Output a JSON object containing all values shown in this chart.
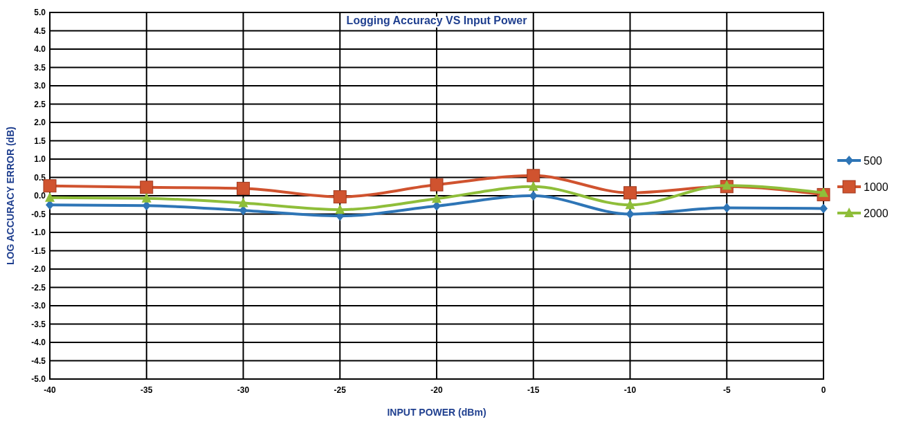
{
  "chart_data": {
    "type": "line",
    "title": "Logging Accuracy VS Input Power",
    "xlabel": "INPUT POWER (dBm)",
    "ylabel": "LOG ACCURACY ERROR (dB)",
    "x": [
      -40,
      -35,
      -30,
      -25,
      -20,
      -15,
      -10,
      -5,
      0
    ],
    "series": [
      {
        "name": "500",
        "color": "#2e75b6",
        "marker": "diamond",
        "values": [
          -0.25,
          -0.27,
          -0.4,
          -0.55,
          -0.28,
          0.0,
          -0.5,
          -0.33,
          -0.35
        ]
      },
      {
        "name": "1000",
        "color": "#d0532f",
        "marker": "square",
        "values": [
          0.27,
          0.23,
          0.2,
          -0.03,
          0.3,
          0.55,
          0.08,
          0.25,
          0.03
        ]
      },
      {
        "name": "2000",
        "color": "#8fbe3a",
        "marker": "triangle",
        "values": [
          -0.05,
          -0.07,
          -0.2,
          -0.38,
          -0.08,
          0.25,
          -0.25,
          0.28,
          0.08
        ]
      }
    ],
    "xlim": [
      -40,
      0
    ],
    "xticks": [
      -40,
      -35,
      -30,
      -25,
      -20,
      -15,
      -10,
      -5,
      0
    ],
    "ylim": [
      -5,
      5
    ],
    "yticks": [
      {
        "value": -5,
        "label": "-5.0"
      },
      {
        "value": -4.5,
        "label": "-4.5"
      },
      {
        "value": -4,
        "label": "-4.0"
      },
      {
        "value": -3.5,
        "label": "-3.5"
      },
      {
        "value": -3,
        "label": "-3.0"
      },
      {
        "value": -2.5,
        "label": "-2.5"
      },
      {
        "value": -2,
        "label": "-2.0"
      },
      {
        "value": -1.5,
        "label": "-1.5"
      },
      {
        "value": -1,
        "label": "-1.0"
      },
      {
        "value": -0.5,
        "label": "-0.5"
      },
      {
        "value": 0,
        "label": "0.0"
      },
      {
        "value": 0.5,
        "label": "0.5"
      },
      {
        "value": 1,
        "label": "1.0"
      },
      {
        "value": 1.5,
        "label": "1.5"
      },
      {
        "value": 2,
        "label": "2.0"
      },
      {
        "value": 2.5,
        "label": "2.5"
      },
      {
        "value": 3,
        "label": "3.0"
      },
      {
        "value": 3.5,
        "label": "3.5"
      },
      {
        "value": 4,
        "label": "4.0"
      },
      {
        "value": 4.5,
        "label": "4.5"
      },
      {
        "value": 5,
        "label": "5.0"
      }
    ],
    "grid": true,
    "legend": "right",
    "line_style": "solid"
  }
}
